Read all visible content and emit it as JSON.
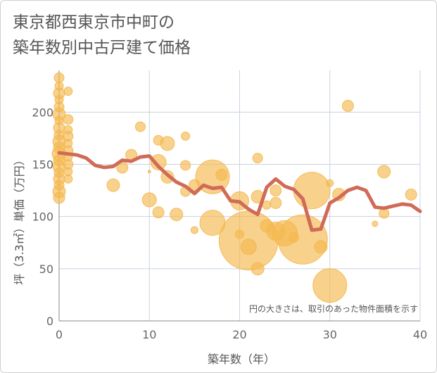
{
  "title_lines": [
    "東京都西東京市中町の",
    "築年数別中古戸建て価格"
  ],
  "chart_data": {
    "type": "scatter",
    "xlabel": "築年数（年）",
    "ylabel": "坪（3.3㎡）単価（万円）",
    "xlim": [
      0,
      40
    ],
    "ylim": [
      0,
      240
    ],
    "xticks": [
      "0",
      "10",
      "20",
      "30",
      "40"
    ],
    "yticks": [
      "0",
      "50",
      "100",
      "150",
      "200"
    ],
    "grid": true,
    "note": "円の大きさは、取引のあった物件面積を示す",
    "colors": {
      "bubble": "#f4b84f",
      "line": "#d06b58",
      "grid": "#c9d3e0",
      "axis": "#888888"
    },
    "series": [
      {
        "kind": "bubble",
        "points": [
          {
            "x": 0,
            "y": 233,
            "s": 7
          },
          {
            "x": 0,
            "y": 225,
            "s": 6
          },
          {
            "x": 0,
            "y": 218,
            "s": 8
          },
          {
            "x": 0,
            "y": 212,
            "s": 6
          },
          {
            "x": 0,
            "y": 205,
            "s": 7
          },
          {
            "x": 0,
            "y": 198,
            "s": 9
          },
          {
            "x": 0,
            "y": 192,
            "s": 6
          },
          {
            "x": 0,
            "y": 185,
            "s": 8
          },
          {
            "x": 0,
            "y": 178,
            "s": 7
          },
          {
            "x": 0,
            "y": 172,
            "s": 9
          },
          {
            "x": 0,
            "y": 166,
            "s": 8
          },
          {
            "x": 0,
            "y": 160,
            "s": 10
          },
          {
            "x": 0,
            "y": 154,
            "s": 8
          },
          {
            "x": 0,
            "y": 148,
            "s": 9
          },
          {
            "x": 0,
            "y": 142,
            "s": 7
          },
          {
            "x": 0,
            "y": 136,
            "s": 8
          },
          {
            "x": 0,
            "y": 130,
            "s": 7
          },
          {
            "x": 0,
            "y": 124,
            "s": 9
          },
          {
            "x": 0,
            "y": 118,
            "s": 8
          },
          {
            "x": 1,
            "y": 220,
            "s": 6
          },
          {
            "x": 1,
            "y": 193,
            "s": 7
          },
          {
            "x": 1,
            "y": 183,
            "s": 6
          },
          {
            "x": 1,
            "y": 177,
            "s": 7
          },
          {
            "x": 1,
            "y": 170,
            "s": 6
          },
          {
            "x": 1,
            "y": 163,
            "s": 7
          },
          {
            "x": 1,
            "y": 157,
            "s": 6
          },
          {
            "x": 1,
            "y": 150,
            "s": 7
          },
          {
            "x": 1,
            "y": 143,
            "s": 6
          },
          {
            "x": 1,
            "y": 136,
            "s": 6
          },
          {
            "x": 6,
            "y": 130,
            "s": 9
          },
          {
            "x": 7,
            "y": 147,
            "s": 8
          },
          {
            "x": 8,
            "y": 159,
            "s": 8
          },
          {
            "x": 9,
            "y": 186,
            "s": 7
          },
          {
            "x": 10,
            "y": 116,
            "s": 10
          },
          {
            "x": 10,
            "y": 143,
            "s": 2
          },
          {
            "x": 11,
            "y": 104,
            "s": 8
          },
          {
            "x": 11,
            "y": 152,
            "s": 11
          },
          {
            "x": 11,
            "y": 173,
            "s": 7
          },
          {
            "x": 12,
            "y": 170,
            "s": 10
          },
          {
            "x": 12,
            "y": 138,
            "s": 9
          },
          {
            "x": 13,
            "y": 102,
            "s": 9
          },
          {
            "x": 14,
            "y": 177,
            "s": 6
          },
          {
            "x": 14,
            "y": 149,
            "s": 7
          },
          {
            "x": 14,
            "y": 124,
            "s": 7
          },
          {
            "x": 15,
            "y": 130,
            "s": 8
          },
          {
            "x": 15,
            "y": 87,
            "s": 5
          },
          {
            "x": 17,
            "y": 138,
            "s": 24
          },
          {
            "x": 17,
            "y": 94,
            "s": 18
          },
          {
            "x": 18,
            "y": 140,
            "s": 8
          },
          {
            "x": 20,
            "y": 115,
            "s": 13
          },
          {
            "x": 20,
            "y": 83,
            "s": 6
          },
          {
            "x": 21,
            "y": 77,
            "s": 42
          },
          {
            "x": 21,
            "y": 71,
            "s": 11
          },
          {
            "x": 22,
            "y": 156,
            "s": 7
          },
          {
            "x": 22,
            "y": 119,
            "s": 9
          },
          {
            "x": 22,
            "y": 50,
            "s": 9
          },
          {
            "x": 23,
            "y": 111,
            "s": 6
          },
          {
            "x": 23,
            "y": 91,
            "s": 9
          },
          {
            "x": 24,
            "y": 125,
            "s": 8
          },
          {
            "x": 24,
            "y": 113,
            "s": 8
          },
          {
            "x": 24,
            "y": 86,
            "s": 13
          },
          {
            "x": 25,
            "y": 84,
            "s": 18
          },
          {
            "x": 26,
            "y": 80,
            "s": 7
          },
          {
            "x": 27,
            "y": 78,
            "s": 35
          },
          {
            "x": 28,
            "y": 125,
            "s": 26
          },
          {
            "x": 29,
            "y": 71,
            "s": 9
          },
          {
            "x": 30,
            "y": 132,
            "s": 5
          },
          {
            "x": 30,
            "y": 34,
            "s": 24
          },
          {
            "x": 31,
            "y": 121,
            "s": 9
          },
          {
            "x": 32,
            "y": 206,
            "s": 8
          },
          {
            "x": 35,
            "y": 93,
            "s": 4
          },
          {
            "x": 36,
            "y": 143,
            "s": 9
          },
          {
            "x": 36,
            "y": 103,
            "s": 7
          },
          {
            "x": 39,
            "y": 121,
            "s": 8
          }
        ]
      },
      {
        "kind": "line",
        "x": [
          0,
          1,
          2,
          3,
          4,
          5,
          6,
          7,
          8,
          9,
          10,
          11,
          12,
          13,
          14,
          15,
          16,
          17,
          18,
          19,
          20,
          21,
          22,
          23,
          24,
          25,
          26,
          27,
          28,
          29,
          30,
          31,
          32,
          33,
          34,
          35,
          36,
          37,
          38,
          39,
          40
        ],
        "y": [
          161,
          160,
          159,
          156,
          149,
          147,
          148,
          154,
          153,
          157,
          158,
          148,
          140,
          133,
          129,
          122,
          130,
          127,
          128,
          115,
          114,
          107,
          102,
          128,
          136,
          129,
          126,
          117,
          87,
          88,
          113,
          118,
          125,
          128,
          125,
          109,
          108,
          110,
          112,
          111,
          105
        ]
      }
    ]
  }
}
